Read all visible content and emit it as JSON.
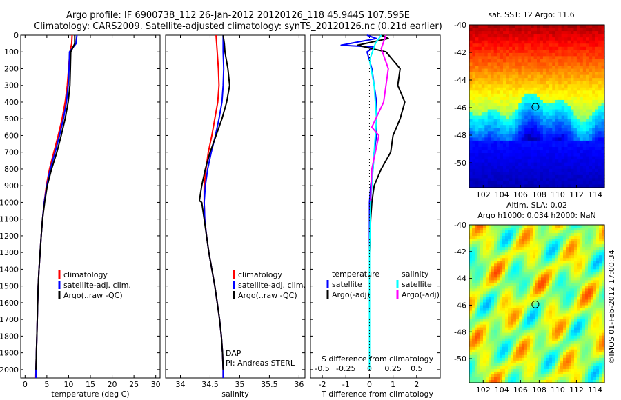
{
  "title_line1": "Argo profile: IF 6900738_112 26-Jan-2012 20120126_118 45.944S 107.595E",
  "title_line2": "Climatology: CARS2009. Satellite-adjusted climatology: synTS_20120126.nc (0.21d earlier)",
  "side_label": "©IMOS 01-Feb-2012 17:00:34",
  "colors": {
    "climatology": "#ff0000",
    "satellite": "#0000ff",
    "argo": "#000000",
    "sat_s": "#00ffff",
    "argo_s": "#ff00ff"
  },
  "chart_data": [
    {
      "type": "line",
      "panel": "temperature",
      "xlabel": "temperature (deg C)",
      "ylim": [
        2050,
        0
      ],
      "xlim": [
        -1,
        31
      ],
      "xticks": [
        "0",
        "5",
        "10",
        "15",
        "20",
        "25",
        "30"
      ],
      "yticks": [
        "0",
        "100",
        "200",
        "300",
        "400",
        "500",
        "600",
        "700",
        "800",
        "900",
        "1000",
        "1100",
        "1200",
        "1300",
        "1400",
        "1500",
        "1600",
        "1700",
        "1800",
        "1900",
        "2000"
      ],
      "legend": [
        "climatology",
        "satellite-adj. clim.",
        "Argo(..raw -QC)"
      ],
      "series": [
        {
          "name": "climatology",
          "color_key": "climatology",
          "points": [
            [
              10.8,
              0
            ],
            [
              10.7,
              50
            ],
            [
              10.3,
              100
            ],
            [
              10.0,
              200
            ],
            [
              9.7,
              300
            ],
            [
              9.2,
              400
            ],
            [
              8.5,
              500
            ],
            [
              7.6,
              600
            ],
            [
              6.6,
              700
            ],
            [
              5.6,
              800
            ],
            [
              4.9,
              900
            ],
            [
              4.4,
              1000
            ],
            [
              4.0,
              1100
            ],
            [
              3.7,
              1200
            ],
            [
              3.45,
              1300
            ],
            [
              3.2,
              1400
            ],
            [
              3.0,
              1500
            ],
            [
              2.9,
              1600
            ],
            [
              2.8,
              1700
            ],
            [
              2.7,
              1800
            ],
            [
              2.6,
              1900
            ],
            [
              2.5,
              2000
            ],
            [
              2.45,
              2050
            ]
          ]
        },
        {
          "name": "satellite-adj. clim.",
          "color_key": "satellite",
          "points": [
            [
              11.9,
              0
            ],
            [
              11.7,
              50
            ],
            [
              10.2,
              100
            ],
            [
              10.1,
              200
            ],
            [
              9.9,
              300
            ],
            [
              9.5,
              400
            ],
            [
              8.8,
              500
            ],
            [
              7.9,
              600
            ],
            [
              6.9,
              700
            ],
            [
              5.8,
              800
            ],
            [
              5.0,
              900
            ],
            [
              4.4,
              1000
            ],
            [
              4.0,
              1100
            ],
            [
              3.7,
              1200
            ],
            [
              3.45,
              1300
            ],
            [
              3.2,
              1400
            ],
            [
              3.0,
              1500
            ],
            [
              2.9,
              1600
            ],
            [
              2.8,
              1700
            ],
            [
              2.7,
              1800
            ],
            [
              2.6,
              1900
            ],
            [
              2.5,
              2000
            ],
            [
              2.5,
              2050
            ]
          ]
        },
        {
          "name": "Argo(..raw -QC)",
          "color_key": "argo",
          "points": [
            [
              11.4,
              0
            ],
            [
              11.4,
              50
            ],
            [
              10.5,
              100
            ],
            [
              10.4,
              200
            ],
            [
              10.3,
              300
            ],
            [
              9.9,
              400
            ],
            [
              9.2,
              500
            ],
            [
              8.3,
              600
            ],
            [
              7.3,
              700
            ],
            [
              6.1,
              800
            ],
            [
              5.1,
              900
            ],
            [
              4.5,
              1000
            ],
            [
              4.0,
              1100
            ],
            [
              3.7,
              1200
            ],
            [
              3.45,
              1300
            ],
            [
              3.2,
              1400
            ],
            [
              3.0,
              1500
            ],
            [
              2.9,
              1600
            ],
            [
              2.8,
              1700
            ],
            [
              2.7,
              1800
            ],
            [
              2.6,
              1900
            ],
            [
              2.5,
              2000
            ]
          ]
        }
      ]
    },
    {
      "type": "line",
      "panel": "salinity",
      "xlabel": "salinity",
      "ylim": [
        2050,
        0
      ],
      "xlim": [
        33.75,
        36.1
      ],
      "xticks": [
        "34",
        "34.5",
        "35",
        "35.5",
        "36"
      ],
      "legend": [
        "climatology",
        "satellite-adj. clim.",
        "Argo(..raw -QC)"
      ],
      "series": [
        {
          "name": "climatology",
          "color_key": "climatology",
          "points": [
            [
              34.6,
              0
            ],
            [
              34.62,
              100
            ],
            [
              34.64,
              200
            ],
            [
              34.65,
              300
            ],
            [
              34.63,
              400
            ],
            [
              34.58,
              500
            ],
            [
              34.53,
              600
            ],
            [
              34.47,
              700
            ],
            [
              34.43,
              800
            ],
            [
              34.4,
              900
            ],
            [
              34.4,
              1000
            ],
            [
              34.41,
              1100
            ],
            [
              34.44,
              1200
            ],
            [
              34.48,
              1300
            ],
            [
              34.53,
              1400
            ],
            [
              34.58,
              1500
            ],
            [
              34.62,
              1600
            ],
            [
              34.66,
              1700
            ],
            [
              34.69,
              1800
            ],
            [
              34.71,
              1900
            ],
            [
              34.72,
              2000
            ],
            [
              34.72,
              2050
            ]
          ]
        },
        {
          "name": "satellite-adj. clim.",
          "color_key": "satellite",
          "points": [
            [
              34.72,
              0
            ],
            [
              34.72,
              100
            ],
            [
              34.73,
              200
            ],
            [
              34.72,
              300
            ],
            [
              34.7,
              400
            ],
            [
              34.65,
              500
            ],
            [
              34.59,
              600
            ],
            [
              34.52,
              700
            ],
            [
              34.46,
              800
            ],
            [
              34.42,
              900
            ],
            [
              34.4,
              1000
            ],
            [
              34.41,
              1100
            ],
            [
              34.44,
              1200
            ],
            [
              34.48,
              1300
            ],
            [
              34.53,
              1400
            ],
            [
              34.58,
              1500
            ],
            [
              34.62,
              1600
            ],
            [
              34.66,
              1700
            ],
            [
              34.69,
              1800
            ],
            [
              34.71,
              1900
            ],
            [
              34.72,
              2000
            ],
            [
              34.72,
              2050
            ]
          ]
        },
        {
          "name": "Argo(..raw -QC)",
          "color_key": "argo",
          "points": [
            [
              34.72,
              0
            ],
            [
              34.74,
              50
            ],
            [
              34.75,
              100
            ],
            [
              34.8,
              200
            ],
            [
              34.83,
              300
            ],
            [
              34.78,
              400
            ],
            [
              34.7,
              500
            ],
            [
              34.6,
              600
            ],
            [
              34.5,
              700
            ],
            [
              34.42,
              800
            ],
            [
              34.36,
              900
            ],
            [
              34.32,
              990
            ],
            [
              34.36,
              1000
            ],
            [
              34.4,
              1100
            ],
            [
              34.44,
              1200
            ],
            [
              34.48,
              1300
            ],
            [
              34.53,
              1400
            ],
            [
              34.58,
              1500
            ],
            [
              34.62,
              1600
            ],
            [
              34.66,
              1700
            ],
            [
              34.69,
              1800
            ],
            [
              34.71,
              1900
            ],
            [
              34.72,
              2000
            ]
          ]
        }
      ]
    },
    {
      "type": "line",
      "panel": "difference",
      "xlabel": "T difference from climatology",
      "xlabel_top": "S difference from climatology",
      "ylim": [
        2050,
        0
      ],
      "xlim": [
        -2.5,
        3
      ],
      "xticks": [
        "-2",
        "-1",
        "0",
        "1",
        "2"
      ],
      "xticks_s": [
        "-0.5",
        "-0.25",
        "0",
        "0.25",
        "0.5"
      ],
      "legend_headers": [
        "temperature",
        "salinity"
      ],
      "legend": [
        "satellite",
        "Argo(-adj)",
        "satellite",
        "Argo(-adj)"
      ],
      "series": [
        {
          "name": "satellite",
          "color_key": "satellite",
          "points": [
            [
              -0.1,
              0
            ],
            [
              0.3,
              20
            ],
            [
              -1.2,
              60
            ],
            [
              0.2,
              70
            ],
            [
              -0.1,
              100
            ],
            [
              0.1,
              200
            ],
            [
              0.2,
              300
            ],
            [
              0.3,
              400
            ],
            [
              0.3,
              500
            ],
            [
              0.3,
              600
            ],
            [
              0.2,
              700
            ],
            [
              0.15,
              800
            ],
            [
              0.05,
              900
            ],
            [
              0.0,
              1000
            ],
            [
              0.0,
              1200
            ],
            [
              0.0,
              1500
            ],
            [
              0.0,
              2000
            ]
          ]
        },
        {
          "name": "Argo(-adj)",
          "color_key": "argo",
          "points": [
            [
              0.5,
              0
            ],
            [
              0.8,
              20
            ],
            [
              -0.5,
              60
            ],
            [
              0.7,
              100
            ],
            [
              1.3,
              200
            ],
            [
              1.2,
              300
            ],
            [
              1.5,
              400
            ],
            [
              1.3,
              500
            ],
            [
              1.0,
              600
            ],
            [
              0.9,
              700
            ],
            [
              0.5,
              800
            ],
            [
              0.2,
              900
            ],
            [
              0.1,
              1000
            ],
            [
              0.05,
              1100
            ],
            [
              0.0,
              1300
            ],
            [
              0.0,
              1600
            ],
            [
              0.0,
              2000
            ]
          ]
        },
        {
          "name": "satellite",
          "color_key": "sat_s",
          "points": [
            [
              0.5,
              0
            ],
            [
              0.25,
              50
            ],
            [
              0.0,
              150
            ],
            [
              0.2,
              300
            ],
            [
              0.3,
              500
            ],
            [
              0.2,
              700
            ],
            [
              0.1,
              900
            ],
            [
              0.05,
              1000
            ],
            [
              0.0,
              1300
            ],
            [
              0.0,
              2000
            ]
          ]
        },
        {
          "name": "Argo(-adj)",
          "color_key": "argo_s",
          "points": [
            [
              0.7,
              0
            ],
            [
              0.5,
              80
            ],
            [
              0.8,
              200
            ],
            [
              0.6,
              400
            ],
            [
              0.1,
              550
            ],
            [
              0.4,
              600
            ],
            [
              0.1,
              800
            ],
            [
              0.05,
              990
            ]
          ]
        }
      ]
    },
    {
      "type": "heatmap",
      "panel": "map_sst",
      "title": "sat. SST: 12 Argo: 11.6",
      "xlim": [
        100.5,
        115
      ],
      "ylim": [
        -51.8,
        -40
      ],
      "xticks": [
        "102",
        "104",
        "106",
        "108",
        "110",
        "112",
        "114"
      ],
      "yticks": [
        "-40",
        "-42",
        "-44",
        "-46",
        "-48",
        "-50"
      ],
      "marker": [
        107.595,
        -45.944
      ]
    },
    {
      "type": "heatmap",
      "panel": "map_sla",
      "title": "Altim. SLA: 0.02",
      "subtitle": "Argo h1000: 0.034 h2000: NaN",
      "xlim": [
        100.5,
        115
      ],
      "ylim": [
        -51.8,
        -40
      ],
      "xticks": [
        "102",
        "104",
        "106",
        "108",
        "110",
        "112",
        "114"
      ],
      "yticks": [
        "-40",
        "-42",
        "-44",
        "-46",
        "-48",
        "-50"
      ],
      "marker": [
        107.595,
        -45.944
      ]
    }
  ],
  "legend_diff_headers": [
    "temperature",
    "salinity"
  ],
  "legend_diff_labels": [
    "satellite",
    "Argo(-adj)",
    "satellite",
    "Argo(-adj)"
  ],
  "pi_lines": [
    "DAP",
    "PI: Andreas STERL"
  ]
}
